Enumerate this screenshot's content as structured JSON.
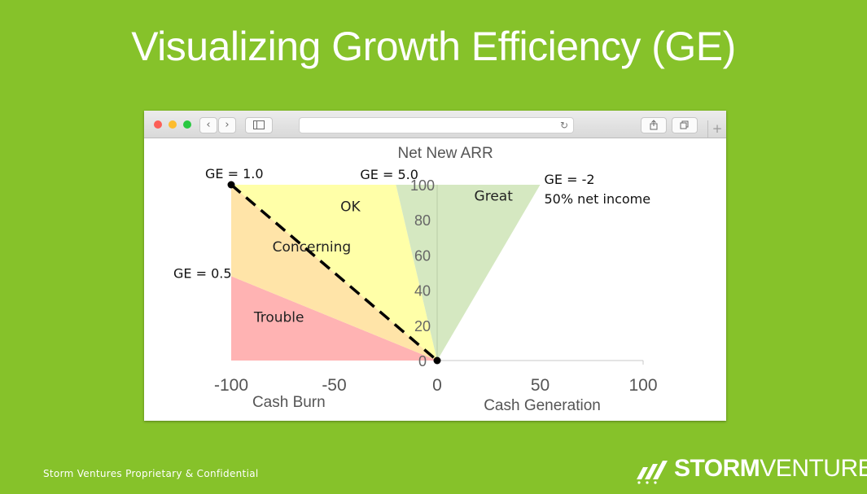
{
  "slide": {
    "title": "Visualizing Growth Efficiency (GE)",
    "footer": "Storm Ventures Proprietary & Confidential",
    "logo_bold": "STORM",
    "logo_light": "VENTURES",
    "background_color": "#86c22a"
  },
  "browser": {
    "back_icon": "chevron-left-icon",
    "forward_icon": "chevron-right-icon",
    "sidebar_icon": "sidebar-icon",
    "reload_icon": "reload-icon",
    "share_icon": "share-icon",
    "tabs_icon": "tabs-icon",
    "newtab_icon": "plus-icon"
  },
  "chart_data": {
    "type": "area",
    "title": "Net New ARR",
    "xlabel_left": "Cash Burn",
    "xlabel_right": "Cash Generation",
    "xlim": [
      -100,
      100
    ],
    "ylim": [
      0,
      100
    ],
    "x_ticks": [
      -100,
      -50,
      0,
      50,
      100
    ],
    "x_tick_labels": [
      "-100",
      "-50",
      "0",
      "50",
      "100"
    ],
    "y_ticks": [
      0,
      20,
      40,
      60,
      80,
      100
    ],
    "y_tick_labels": [
      "0",
      "20",
      "40",
      "60",
      "80",
      "100"
    ],
    "regions": [
      {
        "name": "Trouble",
        "color": "#ffb3b3",
        "points": [
          [
            -100,
            0
          ],
          [
            -100,
            48
          ],
          [
            0,
            0
          ]
        ]
      },
      {
        "name": "Concerning",
        "color": "#ffe4a8",
        "points": [
          [
            -100,
            48
          ],
          [
            -100,
            100
          ],
          [
            0,
            0
          ]
        ]
      },
      {
        "name": "OK",
        "color": "#ffffa8",
        "points": [
          [
            -100,
            100
          ],
          [
            -20,
            100
          ],
          [
            0,
            0
          ]
        ]
      },
      {
        "name": "Great",
        "color": "#d5e8c1",
        "points": [
          [
            -20,
            100
          ],
          [
            50,
            100
          ],
          [
            0,
            0
          ]
        ]
      }
    ],
    "region_labels": [
      {
        "text": "Trouble",
        "x": -89,
        "y": 22
      },
      {
        "text": "Concerning",
        "x": -80,
        "y": 62
      },
      {
        "text": "OK",
        "x": -47,
        "y": 85
      },
      {
        "text": "Great",
        "x": 18,
        "y": 91
      }
    ],
    "dashed_line": {
      "points": [
        [
          -100,
          100
        ],
        [
          0,
          0
        ]
      ],
      "color": "#000000"
    },
    "markers": [
      [
        -100,
        100
      ],
      [
        0,
        0
      ]
    ],
    "annotations": [
      {
        "lines": [
          "GE = 1.0"
        ],
        "x": -100,
        "y": 100
      },
      {
        "lines": [
          "GE = 5.0"
        ],
        "x": -20,
        "y": 100
      },
      {
        "lines": [
          "GE = -2",
          "50% net income"
        ],
        "x": 50,
        "y": 100
      },
      {
        "lines": [
          "GE = 0.5"
        ],
        "x": -100,
        "y": 48
      }
    ]
  }
}
